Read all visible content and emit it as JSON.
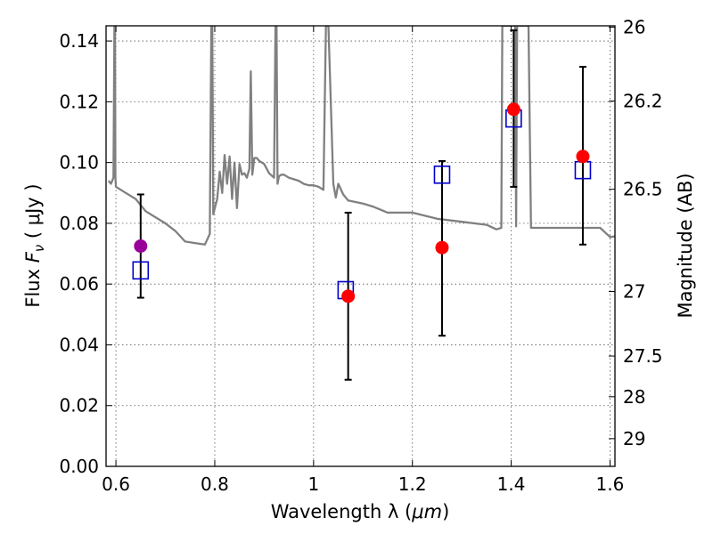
{
  "chart_data": {
    "type": "scatter",
    "xlabel_prefix": "Wavelength  λ (",
    "xlabel_unit": "μm",
    "xlabel_suffix": ")",
    "ylabel_prefix": "Flux  ",
    "ylabel_symbol": "F",
    "ylabel_sub": "ν",
    "ylabel_suffix": "  ( μJy )",
    "y2label": "Magnitude (AB)",
    "xlim": [
      0.58,
      1.61
    ],
    "ylim": [
      0.0,
      0.145
    ],
    "x_ticks": [
      0.6,
      0.8,
      1.0,
      1.2,
      1.4,
      1.6
    ],
    "x_tick_labels": [
      "0.6",
      "0.8",
      "1",
      "1.2",
      "1.4",
      "1.6"
    ],
    "y_ticks": [
      0.0,
      0.02,
      0.04,
      0.06,
      0.08,
      0.1,
      0.12,
      0.14
    ],
    "y_tick_labels": [
      "0.00",
      "0.02",
      "0.04",
      "0.06",
      "0.08",
      "0.10",
      "0.12",
      "0.14"
    ],
    "mag_ticks": [
      26,
      26.2,
      26.5,
      27,
      27.5,
      28,
      29
    ],
    "mag_tick_labels": [
      "26",
      "26.2",
      "26.5",
      "27",
      "27.5",
      "28",
      "29"
    ],
    "grid": true,
    "observed": [
      {
        "x": 0.65,
        "y": 0.0725,
        "err_lo": 0.0555,
        "err_hi": 0.0895,
        "color": "#990099"
      },
      {
        "x": 1.07,
        "y": 0.056,
        "err_lo": 0.0285,
        "err_hi": 0.0835,
        "color": "#ff0000"
      },
      {
        "x": 1.26,
        "y": 0.072,
        "err_lo": 0.043,
        "err_hi": 0.1005,
        "color": "#ff0000"
      },
      {
        "x": 1.405,
        "y": 0.1175,
        "err_lo": 0.092,
        "err_hi": 0.1435,
        "color": "#ff0000"
      },
      {
        "x": 1.545,
        "y": 0.102,
        "err_lo": 0.073,
        "err_hi": 0.1315,
        "color": "#ff0000"
      }
    ],
    "model_bandpass": [
      {
        "x": 0.65,
        "y": 0.0645
      },
      {
        "x": 1.065,
        "y": 0.058
      },
      {
        "x": 1.26,
        "y": 0.096
      },
      {
        "x": 1.405,
        "y": 0.1145
      },
      {
        "x": 1.545,
        "y": 0.0975
      }
    ],
    "spectrum": {
      "color": "#808080",
      "x": [
        0.585,
        0.59,
        0.595,
        0.597,
        0.598,
        0.599,
        0.6,
        0.61,
        0.62,
        0.64,
        0.66,
        0.68,
        0.69,
        0.7,
        0.72,
        0.74,
        0.76,
        0.78,
        0.79,
        0.793,
        0.795,
        0.797,
        0.8,
        0.805,
        0.81,
        0.815,
        0.82,
        0.825,
        0.83,
        0.835,
        0.84,
        0.845,
        0.85,
        0.855,
        0.86,
        0.865,
        0.87,
        0.873,
        0.876,
        0.88,
        0.885,
        0.89,
        0.9,
        0.91,
        0.92,
        0.923,
        0.925,
        0.927,
        0.93,
        0.935,
        0.94,
        0.95,
        0.96,
        0.97,
        0.98,
        0.99,
        1.0,
        1.01,
        1.02,
        1.025,
        1.03,
        1.04,
        1.045,
        1.05,
        1.06,
        1.07,
        1.1,
        1.12,
        1.15,
        1.17,
        1.2,
        1.25,
        1.3,
        1.35,
        1.37,
        1.38,
        1.382,
        1.384,
        1.386,
        1.388,
        1.4,
        1.408,
        1.41,
        1.412,
        1.415,
        1.417,
        1.42,
        1.43,
        1.435,
        1.44,
        1.5,
        1.55,
        1.58,
        1.6,
        1.61
      ],
      "y": [
        0.094,
        0.093,
        0.095,
        0.145,
        0.145,
        0.095,
        0.092,
        0.091,
        0.09,
        0.088,
        0.084,
        0.082,
        0.081,
        0.08,
        0.0775,
        0.074,
        0.0735,
        0.073,
        0.0765,
        0.145,
        0.145,
        0.083,
        0.085,
        0.088,
        0.097,
        0.09,
        0.1025,
        0.093,
        0.102,
        0.088,
        0.1,
        0.085,
        0.0995,
        0.096,
        0.0965,
        0.095,
        0.098,
        0.13,
        0.096,
        0.1015,
        0.1015,
        0.1005,
        0.0995,
        0.0965,
        0.095,
        0.145,
        0.145,
        0.093,
        0.0955,
        0.096,
        0.096,
        0.095,
        0.0945,
        0.094,
        0.093,
        0.0925,
        0.0925,
        0.092,
        0.091,
        0.145,
        0.145,
        0.093,
        0.0885,
        0.093,
        0.0895,
        0.0875,
        0.0865,
        0.0855,
        0.0835,
        0.0835,
        0.0835,
        0.0815,
        0.0805,
        0.0795,
        0.078,
        0.0785,
        0.145,
        0.145,
        0.145,
        0.145,
        0.145,
        0.145,
        0.079,
        0.145,
        0.145,
        0.145,
        0.145,
        0.145,
        0.145,
        0.0785,
        0.0785,
        0.0785,
        0.0785,
        0.0755,
        0.0757
      ]
    }
  }
}
